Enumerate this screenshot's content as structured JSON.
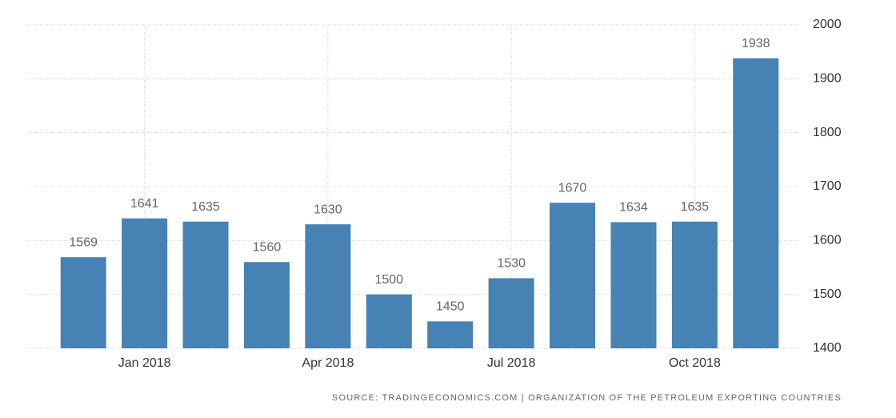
{
  "chart_data": {
    "type": "bar",
    "categories": [
      null,
      "Jan 2018",
      null,
      null,
      "Apr 2018",
      null,
      null,
      "Jul 2018",
      null,
      null,
      "Oct 2018",
      null
    ],
    "values": [
      1569,
      1641,
      1635,
      1560,
      1630,
      1500,
      1450,
      1530,
      1670,
      1634,
      1635,
      1938
    ],
    "color": "#4682b4",
    "ylim": [
      1400,
      2000
    ],
    "yticks": [
      1400,
      1500,
      1600,
      1700,
      1800,
      1900,
      2000
    ],
    "grid": true,
    "source": "SOURCE: TRADINGECONOMICS.COM | ORGANIZATION OF THE PETROLEUM EXPORTING COUNTRIES"
  }
}
